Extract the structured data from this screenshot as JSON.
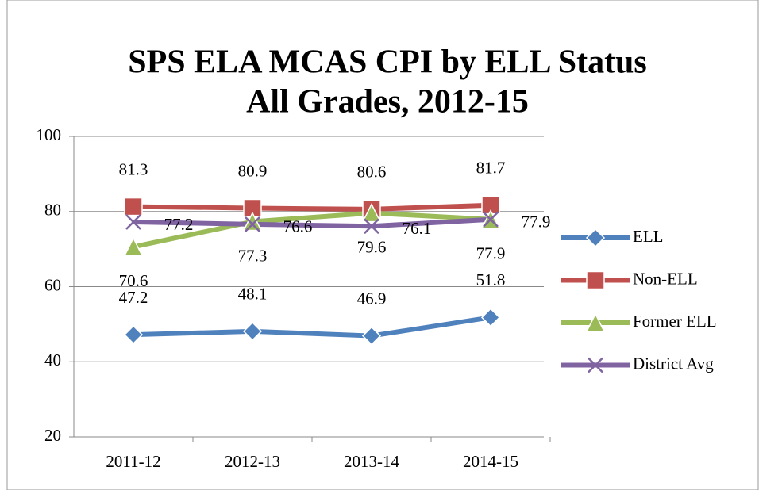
{
  "chart_data": {
    "type": "line",
    "title": "SPS ELA MCAS CPI by ELL Status",
    "subtitle": "All Grades, 2012-15",
    "categories": [
      "2011-12",
      "2012-13",
      "2013-14",
      "2014-15"
    ],
    "series": [
      {
        "name": "ELL",
        "color": "#4f81bd",
        "marker": "diamond",
        "values": [
          47.2,
          48.1,
          46.9,
          51.8
        ]
      },
      {
        "name": "Non-ELL",
        "color": "#c0504d",
        "marker": "square",
        "values": [
          81.3,
          80.9,
          80.6,
          81.7
        ]
      },
      {
        "name": "Former ELL",
        "color": "#9bbb59",
        "marker": "triangle",
        "values": [
          70.6,
          77.3,
          79.6,
          77.9
        ]
      },
      {
        "name": "District Avg",
        "color": "#8064a2",
        "marker": "x",
        "values": [
          77.2,
          76.6,
          76.1,
          77.9
        ]
      }
    ],
    "ylim": [
      20,
      100
    ],
    "yticks": [
      20,
      40,
      60,
      80,
      100
    ],
    "grid": true,
    "legend": "right"
  }
}
